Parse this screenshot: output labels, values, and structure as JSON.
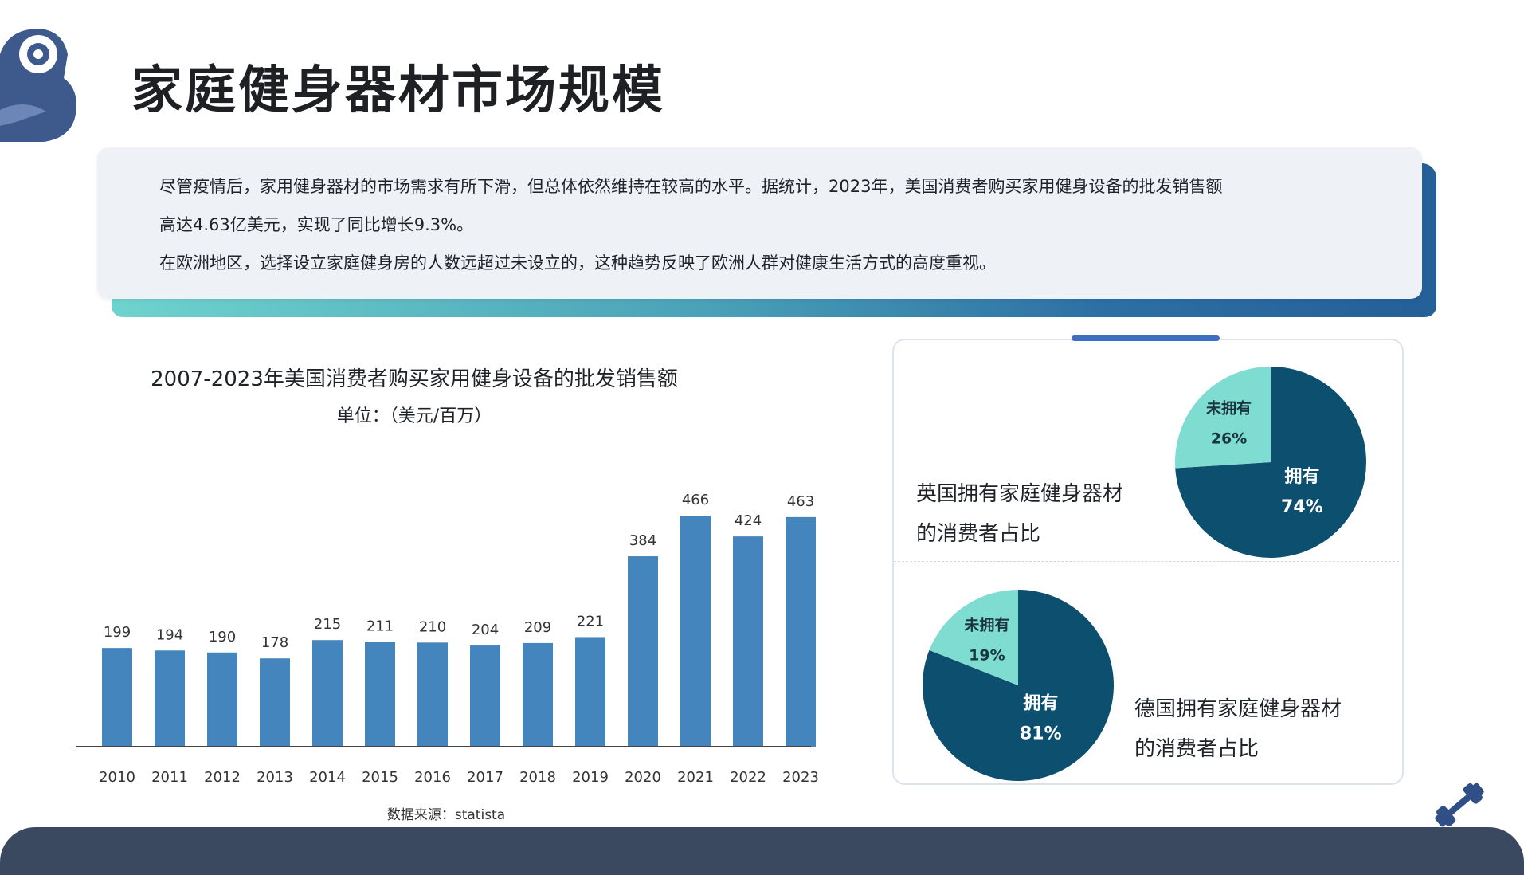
{
  "header": {
    "title": "家庭健身器材市场规模"
  },
  "intro": {
    "line1": "尽管疫情后，家用健身器材的市场需求有所下滑，但总体依然维持在较高的水平。据统计，2023年，美国消费者购买家用健身设备的批发销售额",
    "line2": "高达4.63亿美元，实现了同比增长9.3%。",
    "line3": "在欧洲地区，选择设立家庭健身房的人数远超过未设立的，这种趋势反映了欧洲人群对健康生活方式的高度重视。"
  },
  "colors": {
    "bar": "#4585bd",
    "pie_owned": "#0d4f6e",
    "pie_not_owned": "#7fdcd1",
    "footer": "#3a4860"
  },
  "chart_data": [
    {
      "type": "bar",
      "title": "2007-2023年美国消费者购买家用健身设备的批发销售额",
      "unit": "单位：（美元/百万）",
      "categories": [
        "2010",
        "2011",
        "2012",
        "2013",
        "2014",
        "2015",
        "2016",
        "2017",
        "2018",
        "2019",
        "2020",
        "2021",
        "2022",
        "2023"
      ],
      "values": [
        199,
        194,
        190,
        178,
        215,
        211,
        210,
        204,
        209,
        221,
        384,
        466,
        424,
        463
      ],
      "data_labels": true,
      "grid": false,
      "source": "数据来源：statista"
    },
    {
      "type": "pie",
      "title": "英国拥有家庭健身器材的消费者占比",
      "caption_lines": [
        "英国拥有家庭健身器材",
        "的消费者占比"
      ],
      "slices": [
        {
          "label": "拥有",
          "value": 74,
          "display": "74%"
        },
        {
          "label": "未拥有",
          "value": 26,
          "display": "26%"
        }
      ]
    },
    {
      "type": "pie",
      "title": "德国拥有家庭健身器材的消费者占比",
      "caption_lines": [
        "德国拥有家庭健身器材",
        "的消费者占比"
      ],
      "slices": [
        {
          "label": "拥有",
          "value": 81,
          "display": "81%"
        },
        {
          "label": "未拥有",
          "value": 19,
          "display": "19%"
        }
      ]
    }
  ]
}
